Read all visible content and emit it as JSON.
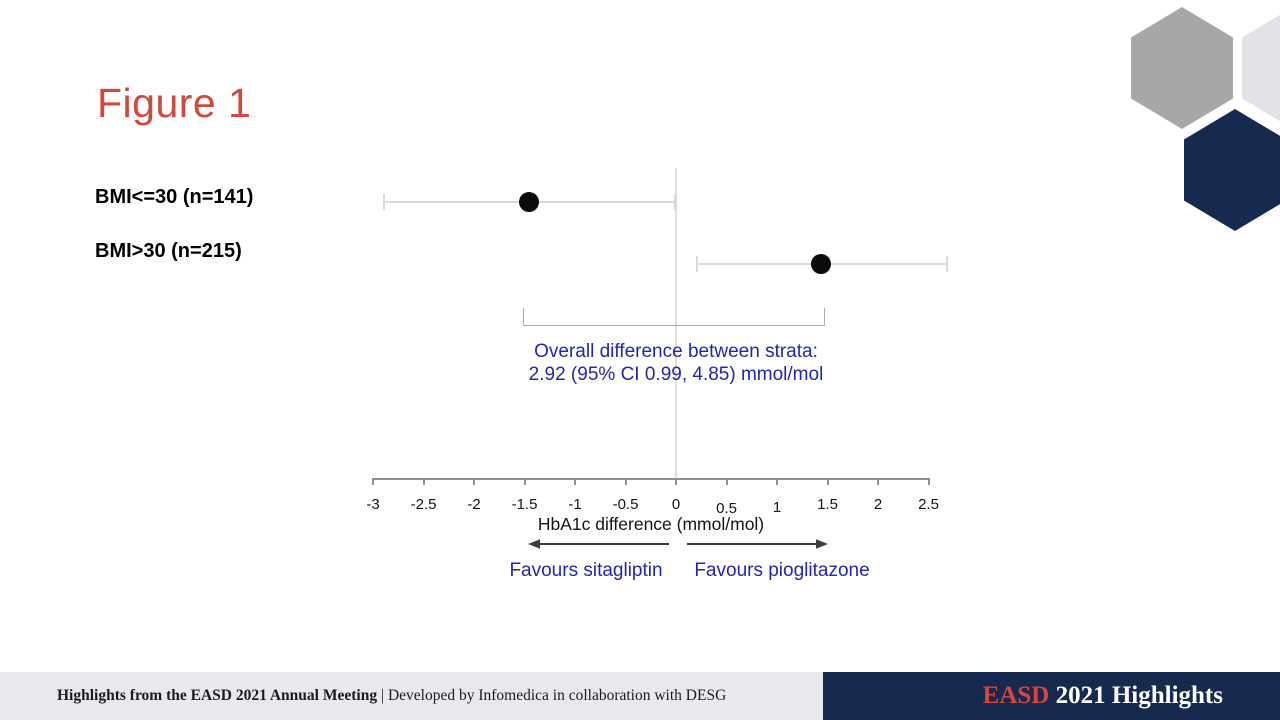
{
  "slide": {
    "title": "Figure 1"
  },
  "chart_data": {
    "type": "forest",
    "title": "Figure 1",
    "xlabel": "HbA1c difference (mmol/mol)",
    "xlim": [
      -3,
      2.5
    ],
    "x_ticks": [
      -3,
      -2.5,
      -2,
      -1.5,
      -1,
      -0.5,
      0,
      0.5,
      1,
      1.5,
      2,
      2.5
    ],
    "x_tick_labels": [
      "-3",
      "-2.5",
      "-2",
      "-1.5",
      "-1",
      "-0.5",
      "0",
      "0.5",
      "1",
      "1.5",
      "2",
      "2.5"
    ],
    "x_tick_dy": [
      0,
      0,
      0,
      0,
      0,
      0,
      0,
      4,
      3,
      0,
      0,
      0
    ],
    "zero_line": 0,
    "grid": false,
    "rows": [
      {
        "label": "BMI<=30 (n=141)",
        "estimate": -1.46,
        "ci_low": -2.9,
        "ci_high": 0.0
      },
      {
        "label": "BMI>30 (n=215)",
        "estimate": 1.44,
        "ci_low": 0.2,
        "ci_high": 2.69
      }
    ],
    "annotation": {
      "line1": "Overall difference between strata:",
      "line2": "2.92 (95% CI 0.99, 4.85) mmol/mol",
      "bracket_from": -1.51,
      "bracket_to": 1.48
    },
    "direction_labels": {
      "left": "Favours sitagliptin",
      "right": "Favours pioglitazone"
    }
  },
  "footer": {
    "left_bold": "Highlights from the EASD 2021 Annual Meeting",
    "separator": "|",
    "left_regular": "Developed by Infomedica in collaboration with DESG",
    "brand_red": "EASD",
    "brand_rest": "2021 Highlights"
  },
  "colors": {
    "title_red": "#d2473e",
    "brand_red": "#d8453e",
    "accent_blue": "#2226b2",
    "navy": "#16294e",
    "footer_gray": "#e9e9ed",
    "hex_gray": "#a7a7a9",
    "hex_light": "#e3e3e7",
    "ci_gray": "#d9d9d9",
    "zero_line_gray": "#dedede",
    "axis_gray": "#8f8f8f",
    "bracket_gray": "#ababab",
    "arrow_gray": "#3d3d3d",
    "dot_black": "#0b0b0b"
  }
}
